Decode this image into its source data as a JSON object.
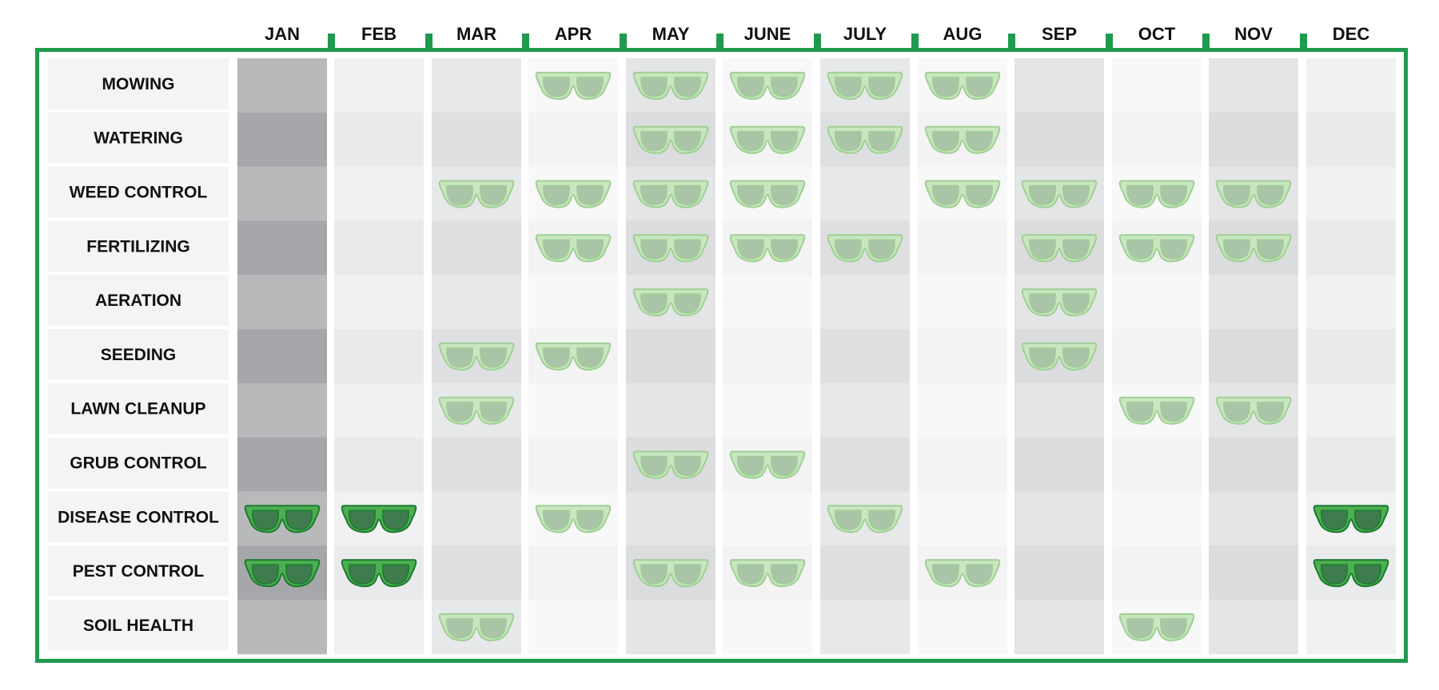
{
  "colors": {
    "border": "#1f9a4e",
    "glasses_light_fill": "#c9e6c0",
    "glasses_light_stroke": "#9fcf95",
    "glasses_light_lens": "#a9c4a6",
    "glasses_dark_fill": "#4caf50",
    "glasses_dark_stroke": "#1b7a30",
    "glasses_dark_lens": "#3f7c4d",
    "jan_column_a": "#b8b9bb",
    "jan_column_b": "#a6a7aa"
  },
  "icon": "sunglasses-icon",
  "months": [
    "JAN",
    "FEB",
    "MAR",
    "APR",
    "MAY",
    "JUNE",
    "JULY",
    "AUG",
    "SEP",
    "OCT",
    "NOV",
    "DEC"
  ],
  "tasks": [
    {
      "label": "MOWING",
      "marks": [
        0,
        0,
        0,
        1,
        1,
        1,
        1,
        1,
        0,
        0,
        0,
        0
      ]
    },
    {
      "label": "WATERING",
      "marks": [
        0,
        0,
        0,
        0,
        1,
        1,
        1,
        1,
        0,
        0,
        0,
        0
      ]
    },
    {
      "label": "WEED CONTROL",
      "marks": [
        0,
        0,
        1,
        1,
        1,
        1,
        0,
        1,
        1,
        1,
        1,
        0
      ]
    },
    {
      "label": "FERTILIZING",
      "marks": [
        0,
        0,
        0,
        1,
        1,
        1,
        1,
        0,
        1,
        1,
        1,
        0
      ]
    },
    {
      "label": "AERATION",
      "marks": [
        0,
        0,
        0,
        0,
        1,
        0,
        0,
        0,
        1,
        0,
        0,
        0
      ]
    },
    {
      "label": "SEEDING",
      "marks": [
        0,
        0,
        1,
        1,
        0,
        0,
        0,
        0,
        1,
        0,
        0,
        0
      ]
    },
    {
      "label": "LAWN CLEANUP",
      "marks": [
        0,
        0,
        1,
        0,
        0,
        0,
        0,
        0,
        0,
        1,
        1,
        0
      ]
    },
    {
      "label": "GRUB CONTROL",
      "marks": [
        0,
        0,
        0,
        0,
        1,
        1,
        0,
        0,
        0,
        0,
        0,
        0
      ]
    },
    {
      "label": "DISEASE CONTROL",
      "marks": [
        2,
        2,
        0,
        1,
        0,
        0,
        1,
        0,
        0,
        0,
        0,
        2
      ]
    },
    {
      "label": "PEST CONTROL",
      "marks": [
        2,
        2,
        0,
        0,
        1,
        1,
        0,
        1,
        0,
        0,
        0,
        2
      ]
    },
    {
      "label": "SOIL HEALTH",
      "marks": [
        0,
        0,
        1,
        0,
        0,
        0,
        0,
        0,
        0,
        1,
        0,
        0
      ]
    }
  ]
}
